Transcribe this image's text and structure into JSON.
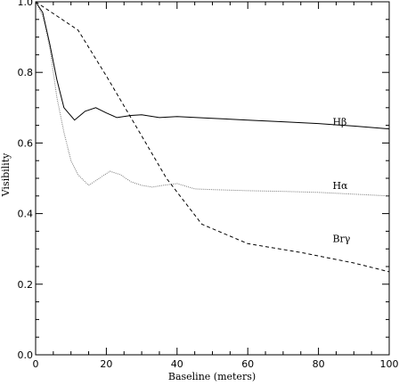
{
  "chart_data": {
    "type": "line",
    "xlabel": "Baseline (meters)",
    "ylabel": "Visibility",
    "xlim": [
      0,
      100
    ],
    "ylim": [
      0,
      1
    ],
    "x_ticks": [
      0,
      20,
      40,
      60,
      80,
      100
    ],
    "y_ticks": [
      0.0,
      0.2,
      0.4,
      0.6,
      0.8,
      1.0
    ],
    "x_tick_labels": [
      "0",
      "20",
      "40",
      "60",
      "80",
      "100"
    ],
    "y_tick_labels": [
      "0.0",
      "0.2",
      "0.4",
      "0.6",
      "0.8",
      "1.0"
    ],
    "grid": false,
    "legend": "inline labels",
    "series": [
      {
        "name": "Hβ",
        "style": "solid",
        "color": "#000000",
        "x": [
          0,
          2,
          4,
          6,
          8,
          11,
          14,
          17,
          20,
          23,
          27,
          30,
          35,
          40,
          50,
          60,
          70,
          80,
          90,
          100
        ],
        "y": [
          1.0,
          0.97,
          0.88,
          0.78,
          0.7,
          0.665,
          0.69,
          0.7,
          0.685,
          0.672,
          0.678,
          0.68,
          0.672,
          0.675,
          0.67,
          0.665,
          0.66,
          0.655,
          0.648,
          0.64
        ]
      },
      {
        "name": "Hα",
        "style": "dotted",
        "color": "#777777",
        "x": [
          0,
          2,
          4,
          6,
          8,
          10,
          12,
          15,
          18,
          21,
          24,
          27,
          30,
          33,
          36,
          40,
          45,
          50,
          60,
          70,
          80,
          90,
          100
        ],
        "y": [
          1.0,
          0.96,
          0.87,
          0.73,
          0.63,
          0.55,
          0.51,
          0.48,
          0.5,
          0.52,
          0.51,
          0.49,
          0.48,
          0.475,
          0.48,
          0.485,
          0.47,
          0.468,
          0.465,
          0.463,
          0.46,
          0.455,
          0.45
        ]
      },
      {
        "name": "Brγ",
        "style": "dashed",
        "color": "#000000",
        "x": [
          0,
          12,
          20,
          30,
          37,
          47,
          60,
          75,
          90,
          100
        ],
        "y": [
          1.0,
          0.92,
          0.79,
          0.62,
          0.5,
          0.37,
          0.315,
          0.29,
          0.26,
          0.235
        ]
      }
    ],
    "series_labels": [
      {
        "text": "Hβ",
        "x": 84,
        "y": 0.65
      },
      {
        "text": "Hα",
        "x": 84,
        "y": 0.47
      },
      {
        "text": "Brγ",
        "x": 84,
        "y": 0.32
      }
    ]
  }
}
